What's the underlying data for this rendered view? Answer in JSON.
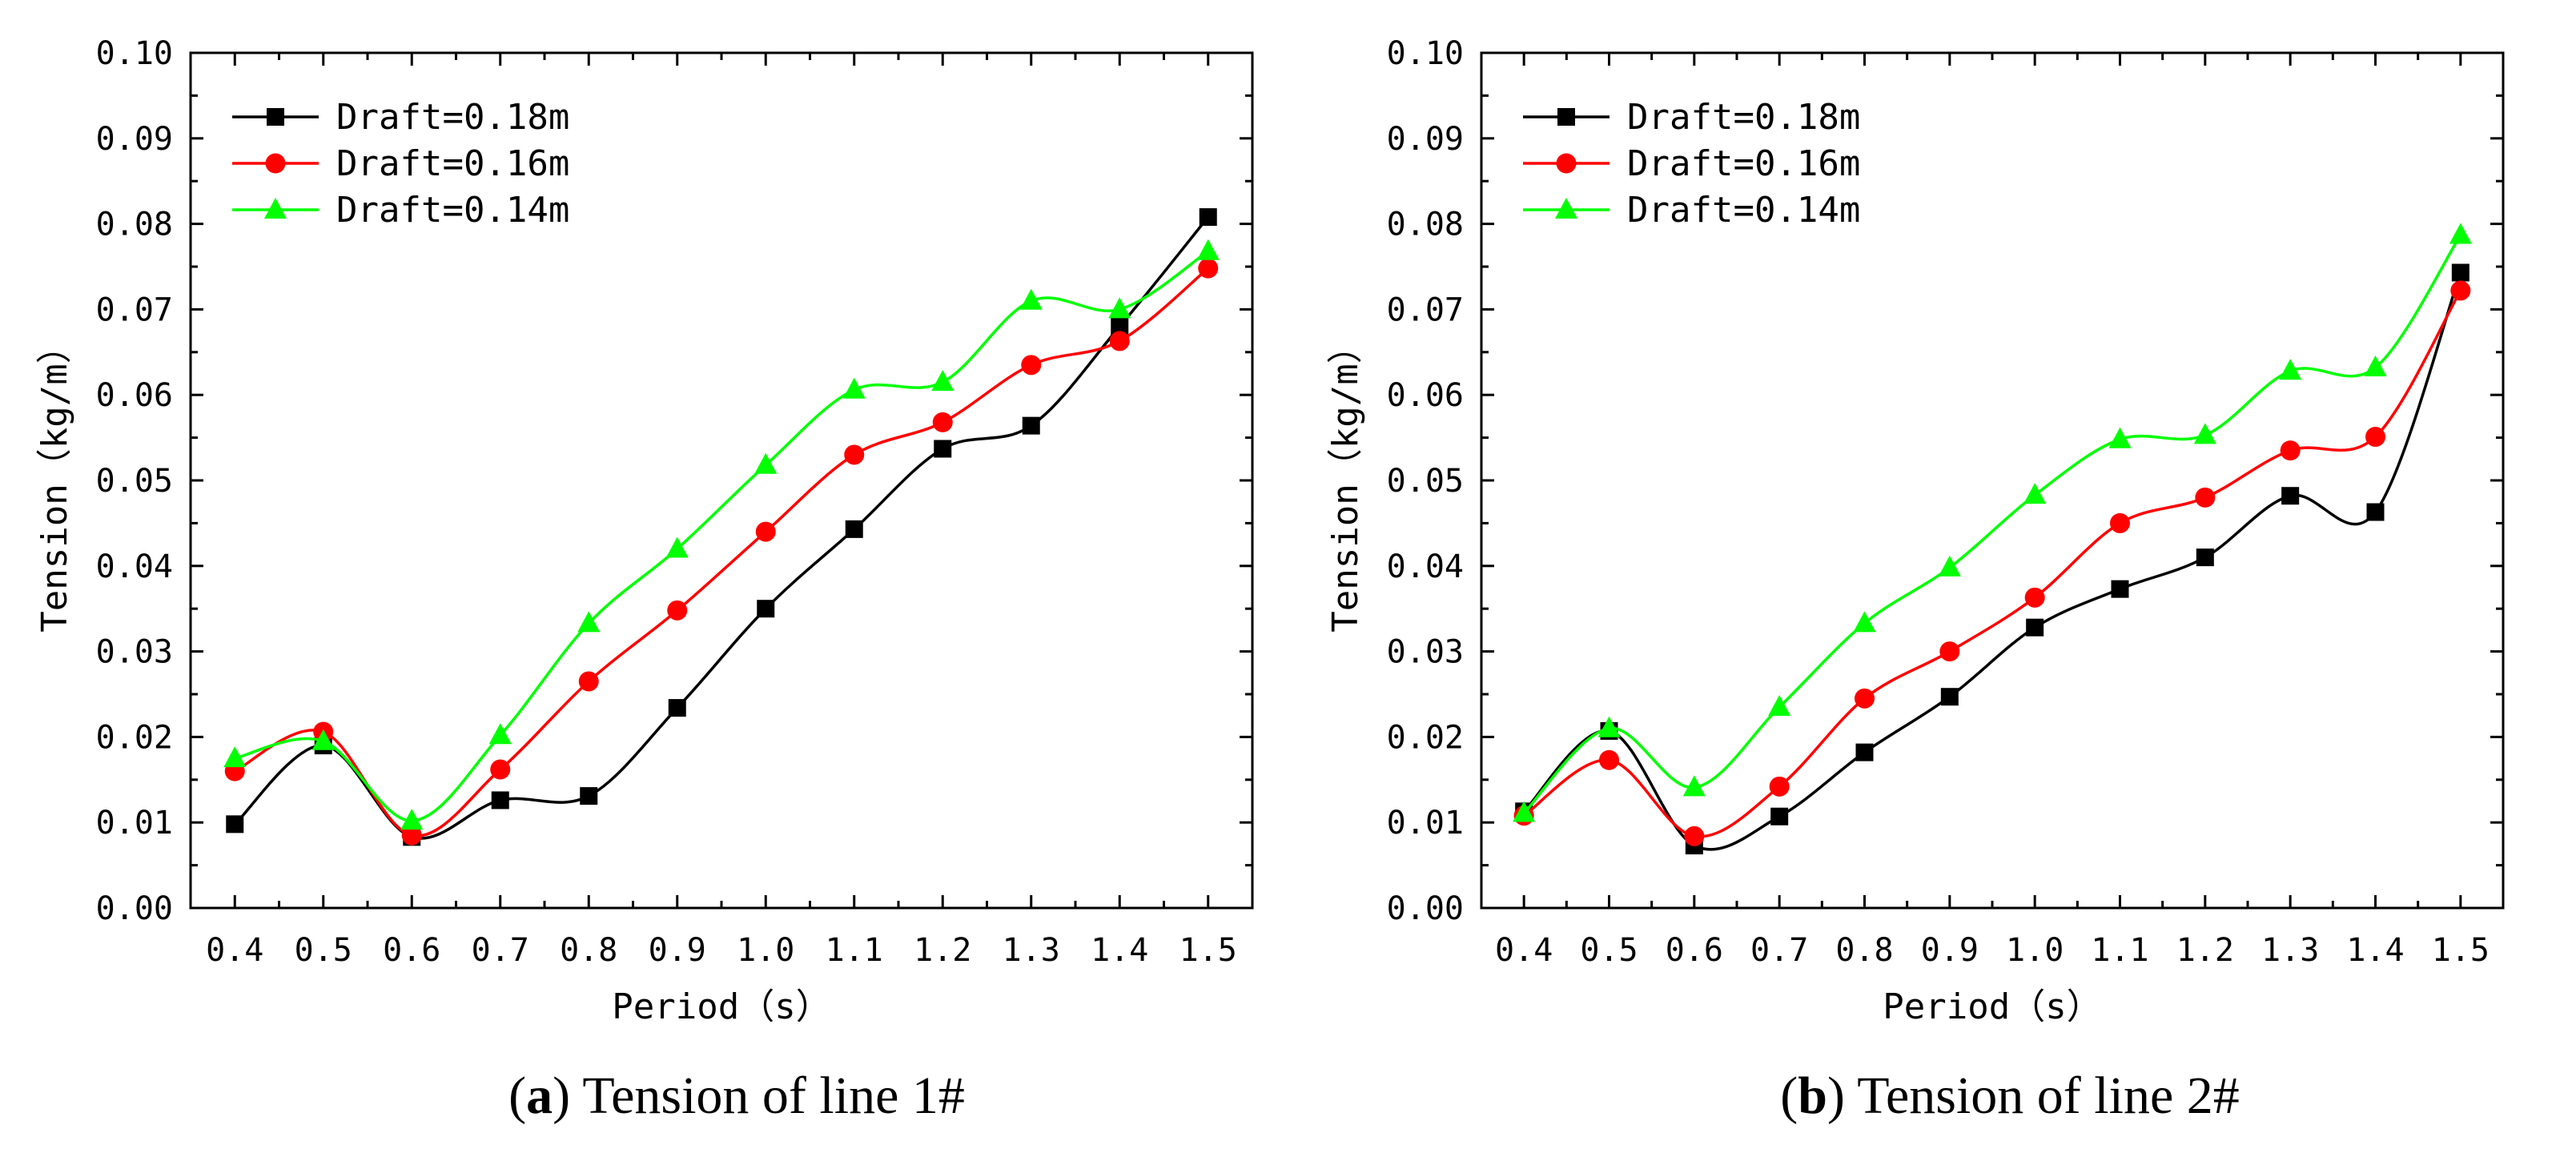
{
  "chart_data": [
    {
      "type": "line",
      "caption_letter": "a",
      "caption_text": "Tension of line 1#",
      "xlabel": "Period（s）",
      "ylabel": "Tension（kg/m）",
      "x": [
        0.4,
        0.5,
        0.6,
        0.7,
        0.8,
        0.9,
        1.0,
        1.1,
        1.2,
        1.3,
        1.4,
        1.5
      ],
      "xlim": [
        0.35,
        1.55
      ],
      "ylim": [
        0.0,
        0.1
      ],
      "x_ticks": [
        "0.4",
        "0.5",
        "0.6",
        "0.7",
        "0.8",
        "0.9",
        "1.0",
        "1.1",
        "1.2",
        "1.3",
        "1.4",
        "1.5"
      ],
      "y_ticks": [
        "0.00",
        "0.01",
        "0.02",
        "0.03",
        "0.04",
        "0.05",
        "0.06",
        "0.07",
        "0.08",
        "0.09",
        "0.10"
      ],
      "legend_position": "top-left",
      "series": [
        {
          "name": "Draft=0.18m",
          "color": "#000000",
          "marker": "square",
          "values": [
            0.0098,
            0.019,
            0.0083,
            0.0126,
            0.0131,
            0.0234,
            0.035,
            0.0443,
            0.0537,
            0.0564,
            0.068,
            0.0808
          ]
        },
        {
          "name": "Draft=0.16m",
          "color": "#ff0000",
          "marker": "circle",
          "values": [
            0.016,
            0.0206,
            0.0085,
            0.0162,
            0.0265,
            0.0348,
            0.044,
            0.053,
            0.0568,
            0.0635,
            0.0663,
            0.0748
          ]
        },
        {
          "name": "Draft=0.14m",
          "color": "#00ff00",
          "marker": "triangle",
          "values": [
            0.0175,
            0.0195,
            0.0102,
            0.0202,
            0.0333,
            0.042,
            0.0518,
            0.0606,
            0.0615,
            0.071,
            0.07,
            0.0768
          ]
        }
      ]
    },
    {
      "type": "line",
      "caption_letter": "b",
      "caption_text": "Tension of line 2#",
      "xlabel": "Period（s）",
      "ylabel": "Tension（kg/m）",
      "x": [
        0.4,
        0.5,
        0.6,
        0.7,
        0.8,
        0.9,
        1.0,
        1.1,
        1.2,
        1.3,
        1.4,
        1.5
      ],
      "xlim": [
        0.35,
        1.55
      ],
      "ylim": [
        0.0,
        0.1
      ],
      "x_ticks": [
        "0.4",
        "0.5",
        "0.6",
        "0.7",
        "0.8",
        "0.9",
        "1.0",
        "1.1",
        "1.2",
        "1.3",
        "1.4",
        "1.5"
      ],
      "y_ticks": [
        "0.00",
        "0.01",
        "0.02",
        "0.03",
        "0.04",
        "0.05",
        "0.06",
        "0.07",
        "0.08",
        "0.09",
        "0.10"
      ],
      "legend_position": "top-left",
      "series": [
        {
          "name": "Draft=0.18m",
          "color": "#000000",
          "marker": "square",
          "values": [
            0.0113,
            0.0207,
            0.0073,
            0.0107,
            0.0182,
            0.0247,
            0.0328,
            0.0373,
            0.041,
            0.0482,
            0.0463,
            0.0743
          ]
        },
        {
          "name": "Draft=0.16m",
          "color": "#ff0000",
          "marker": "circle",
          "values": [
            0.0108,
            0.0173,
            0.0084,
            0.0142,
            0.0245,
            0.03,
            0.0363,
            0.045,
            0.048,
            0.0535,
            0.0551,
            0.0722
          ]
        },
        {
          "name": "Draft=0.14m",
          "color": "#00ff00",
          "marker": "triangle",
          "values": [
            0.0111,
            0.021,
            0.0141,
            0.0235,
            0.0333,
            0.0398,
            0.0483,
            0.0548,
            0.0553,
            0.0628,
            0.0632,
            0.0787
          ]
        }
      ]
    }
  ]
}
